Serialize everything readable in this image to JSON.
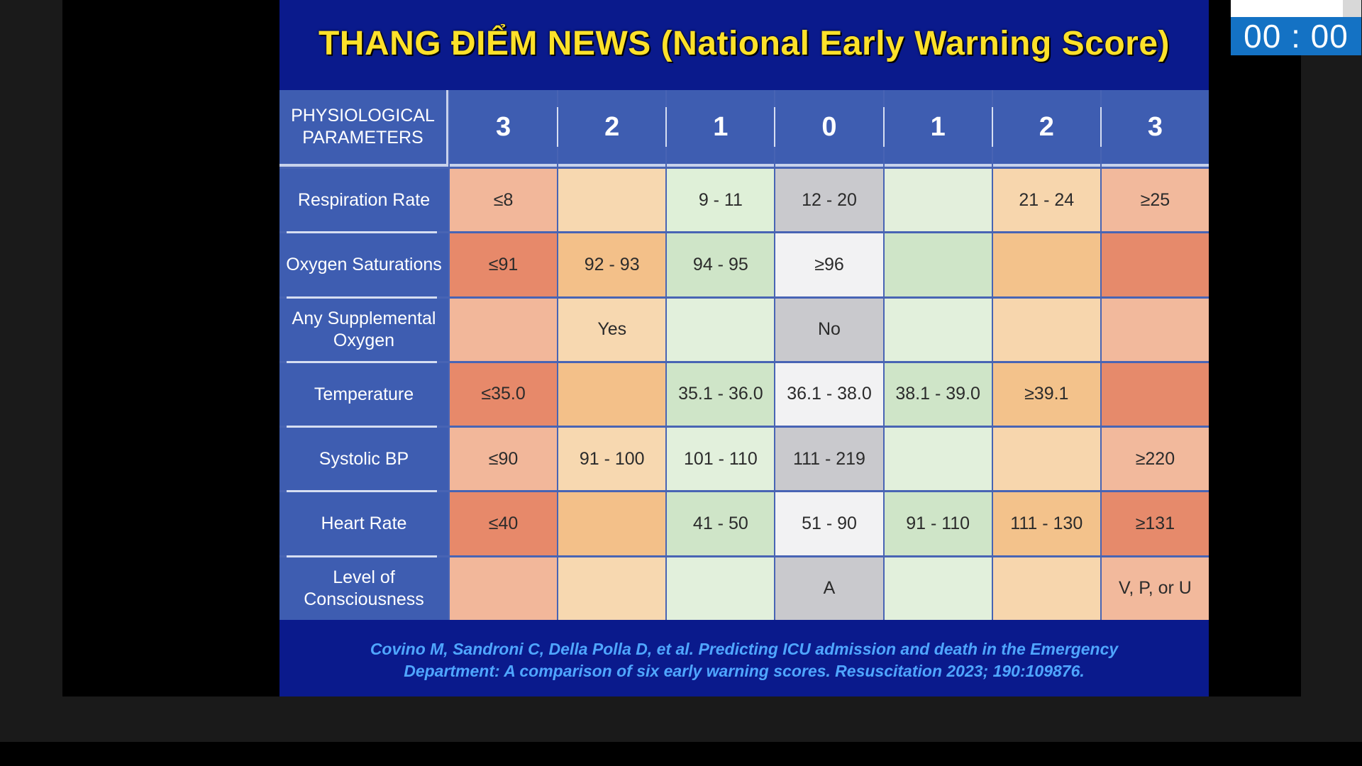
{
  "slide": {
    "title": "THANG ĐIỂM NEWS (National Early Warning Score)",
    "citation_line1": "Covino M, Sandroni C, Della Polla D, et al. Predicting ICU admission and death in the Emergency",
    "citation_line2": "Department: A comparison of six early warning scores. Resuscitation 2023; 190:109876."
  },
  "table": {
    "header_label": "PHYSIOLOGICAL PARAMETERS",
    "scores": [
      "3",
      "2",
      "1",
      "0",
      "1",
      "2",
      "3"
    ],
    "rows": [
      {
        "param": "Respiration Rate",
        "cells": [
          "≤8",
          "",
          "9 - 11",
          "12 - 20",
          "",
          "21 - 24",
          "≥25"
        ],
        "colors": [
          "#f2b79a",
          "#f7d8b0",
          "#dff0d8",
          "#c9c9cd",
          "#e3efdc",
          "#f7d6ad",
          "#f2b99c"
        ]
      },
      {
        "param": "Oxygen Saturations",
        "cells": [
          "≤91",
          "92 - 93",
          "94 - 95",
          "≥96",
          "",
          "",
          ""
        ],
        "colors": [
          "#e7896a",
          "#f3c089",
          "#cfe5c8",
          "#f2f2f3",
          "#cfe5c8",
          "#f3c28b",
          "#e68a6b"
        ]
      },
      {
        "param": "Any Supplemental Oxygen",
        "cells": [
          "",
          "Yes",
          "",
          "No",
          "",
          "",
          ""
        ],
        "colors": [
          "#f2b79a",
          "#f7d8b0",
          "#e2f0dc",
          "#c9c9cd",
          "#e2f0dc",
          "#f7d6ad",
          "#f2b99c"
        ]
      },
      {
        "param": "Temperature",
        "cells": [
          "≤35.0",
          "",
          "35.1 - 36.0",
          "36.1 - 38.0",
          "38.1 - 39.0",
          "≥39.1",
          ""
        ],
        "colors": [
          "#e7896a",
          "#f3c089",
          "#cfe5c8",
          "#f2f2f3",
          "#cfe5c8",
          "#f3c28b",
          "#e68a6b"
        ]
      },
      {
        "param": "Systolic BP",
        "cells": [
          "≤90",
          "91 - 100",
          "101 - 110",
          "111 - 219",
          "",
          "",
          "≥220"
        ],
        "colors": [
          "#f2b79a",
          "#f7d8b0",
          "#e2f0dc",
          "#c9c9cd",
          "#e2f0dc",
          "#f7d6ad",
          "#f2b99c"
        ]
      },
      {
        "param": "Heart Rate",
        "cells": [
          "≤40",
          "",
          "41 - 50",
          "51 - 90",
          "91 - 110",
          "111 - 130",
          "≥131"
        ],
        "colors": [
          "#e7896a",
          "#f3c089",
          "#cfe5c8",
          "#f2f2f3",
          "#cfe5c8",
          "#f3c28b",
          "#e68a6b"
        ]
      },
      {
        "param": "Level of Consciousness",
        "cells": [
          "",
          "",
          "",
          "A",
          "",
          "",
          "V, P, or U"
        ],
        "colors": [
          "#f2b79a",
          "#f7d8b0",
          "#e2f0dc",
          "#c9c9cd",
          "#e2f0dc",
          "#f7d6ad",
          "#f2b99c"
        ]
      }
    ]
  },
  "timer": {
    "display": "00 : 00"
  }
}
